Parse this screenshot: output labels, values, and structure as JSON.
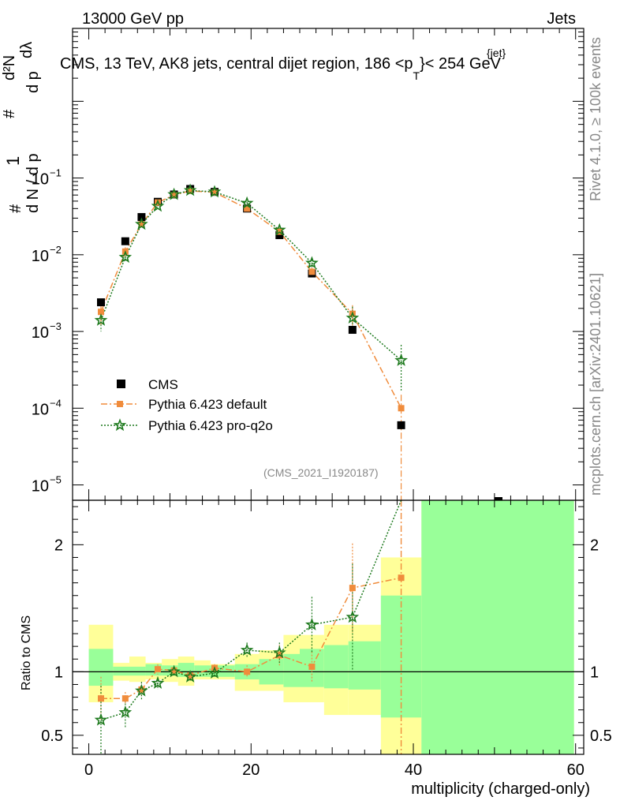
{
  "header": {
    "left": "13000 GeV pp",
    "right": "Jets",
    "title_main": "CMS, 13 TeV, AK8 jets, central dijet region, 186 <p",
    "title_sup": "{jet}",
    "title_sub": "T",
    "title_end": "}< 254 GeV"
  },
  "side": {
    "rivet": "Rivet 4.1.0, ≥ 100k events",
    "mcplots": "mcplots.cern.ch [arXiv:2401.10621]"
  },
  "analysis_tag": "(CMS_2021_I1920187)",
  "chart_data": {
    "type": "scatter",
    "xlabel": "multiplicity (charged-only)",
    "ylabel_main": "1/N dN/dp_T dN/dp_T dλ",
    "ylabel_main_parts": {
      "n1": "1",
      "frac1_den": "d N / d p",
      "sub": "T",
      "hash1": "#",
      "dn_top": "d²N",
      "dp_den": "d p",
      "dl": "dλ",
      "hash2": "#",
      "hash3": "#"
    },
    "ylabel_ratio": "Ratio to CMS",
    "xlim": [
      -2,
      61
    ],
    "ylim_main_log": [
      -5.2,
      0.95
    ],
    "ylim_ratio": [
      0.35,
      2.35
    ],
    "x_ticks": [
      0,
      20,
      40,
      60
    ],
    "y_ticks_main": [
      "10^{-5}",
      "10^{-4}",
      "10^{-3}",
      "10^{-2}",
      "10^{-1}"
    ],
    "y_ticks_main_labels": [
      {
        "base": "10",
        "exp": "−5"
      },
      {
        "base": "10",
        "exp": "−4"
      },
      {
        "base": "10",
        "exp": "−3"
      },
      {
        "base": "10",
        "exp": "−2"
      },
      {
        "base": "10",
        "exp": "−1"
      }
    ],
    "y_ticks_ratio": [
      "0.5",
      "1",
      "2"
    ],
    "x_tick_labels": [
      "0",
      "20",
      "40",
      "60"
    ],
    "legend": [
      {
        "name": "CMS"
      },
      {
        "name": "Pythia 6.423 default"
      },
      {
        "name": "Pythia 6.423 pro-q2o"
      }
    ],
    "bins_edges": [
      0,
      3,
      5,
      7,
      9,
      11,
      13,
      15,
      18,
      21,
      24,
      26,
      29,
      32,
      36,
      41,
      60
    ],
    "band_yellow": [
      [
        0.76,
        1.37
      ],
      [
        0.93,
        1.07
      ],
      [
        0.92,
        1.12
      ],
      [
        0.94,
        1.07
      ],
      [
        0.92,
        1.1
      ],
      [
        0.89,
        1.12
      ],
      [
        0.94,
        1.09
      ],
      [
        0.94,
        1.06
      ],
      [
        0.85,
        1.14
      ],
      [
        0.85,
        1.17
      ],
      [
        0.76,
        1.29
      ],
      [
        0.76,
        1.29
      ],
      [
        0.66,
        1.37
      ],
      [
        0.66,
        1.37
      ],
      [
        0.35,
        1.9
      ],
      [
        0.35,
        2.35
      ]
    ],
    "band_green": [
      [
        0.89,
        1.18
      ],
      [
        0.97,
        1.04
      ],
      [
        0.97,
        1.04
      ],
      [
        0.97,
        1.06
      ],
      [
        0.97,
        1.05
      ],
      [
        0.96,
        1.07
      ],
      [
        0.96,
        1.05
      ],
      [
        0.96,
        1.05
      ],
      [
        0.94,
        1.06
      ],
      [
        0.9,
        1.1
      ],
      [
        0.88,
        1.14
      ],
      [
        0.88,
        1.18
      ],
      [
        0.87,
        1.21
      ],
      [
        0.86,
        1.24
      ],
      [
        0.64,
        1.6
      ],
      [
        0.35,
        2.35
      ]
    ],
    "series": [
      {
        "name": "CMS",
        "color": "#000000",
        "x": [
          1.5,
          4.5,
          6.5,
          8.5,
          10.5,
          12.5,
          15.5,
          19.5,
          23.5,
          27.5,
          32.5,
          38.5
        ],
        "y": [
          0.0024,
          0.015,
          0.031,
          0.049,
          0.061,
          0.072,
          0.066,
          0.04,
          0.018,
          0.0057,
          0.00105,
          6e-05
        ]
      },
      {
        "name": "Pythia 6.423 default",
        "color": "#f08c3c",
        "x": [
          1.5,
          4.5,
          6.5,
          8.5,
          10.5,
          12.5,
          15.5,
          19.5,
          23.5,
          27.5,
          32.5,
          38.5
        ],
        "y": [
          0.0018,
          0.011,
          0.025,
          0.048,
          0.06,
          0.068,
          0.065,
          0.04,
          0.02,
          0.006,
          0.0017,
          0.0001
        ],
        "ratio": [
          0.79,
          0.79,
          0.86,
          1.02,
          1.01,
          0.97,
          1.03,
          1.0,
          1.13,
          1.04,
          1.66,
          1.74
        ],
        "ratio_err": [
          0.17,
          0.05,
          0.06,
          0.04,
          0.03,
          0.03,
          0.03,
          0.05,
          0.08,
          0.12,
          0.35,
          0.0
        ]
      },
      {
        "name": "Pythia 6.423 pro-q2o",
        "color": "#1e7a1e",
        "x": [
          1.5,
          4.5,
          6.5,
          8.5,
          10.5,
          12.5,
          15.5,
          19.5,
          23.5,
          27.5,
          32.5,
          38.5
        ],
        "y": [
          0.0014,
          0.0093,
          0.025,
          0.043,
          0.061,
          0.069,
          0.066,
          0.047,
          0.021,
          0.0078,
          0.0015,
          0.00042
        ],
        "ratio": [
          0.62,
          0.68,
          0.85,
          0.91,
          1.0,
          0.96,
          0.99,
          1.17,
          1.15,
          1.37,
          1.43,
          2.7
        ],
        "ratio_err": [
          0.27,
          0.12,
          0.07,
          0.05,
          0.03,
          0.03,
          0.03,
          0.06,
          0.08,
          0.22,
          0.42,
          0.0
        ]
      }
    ],
    "main_err_default": [
      0.0006,
      0.0015,
      0.002,
      0.002,
      0.002,
      0.002,
      0.002,
      0.002,
      0.0015,
      0.0008,
      0.0005,
      5e-05
    ],
    "main_err_q2o": [
      0.0004,
      0.0012,
      0.002,
      0.002,
      0.002,
      0.002,
      0.002,
      0.002,
      0.0015,
      0.0009,
      0.0006,
      0.00025
    ],
    "outlier_cms_x": 50.5,
    "outlier_cms_y": 5.5e-06
  }
}
